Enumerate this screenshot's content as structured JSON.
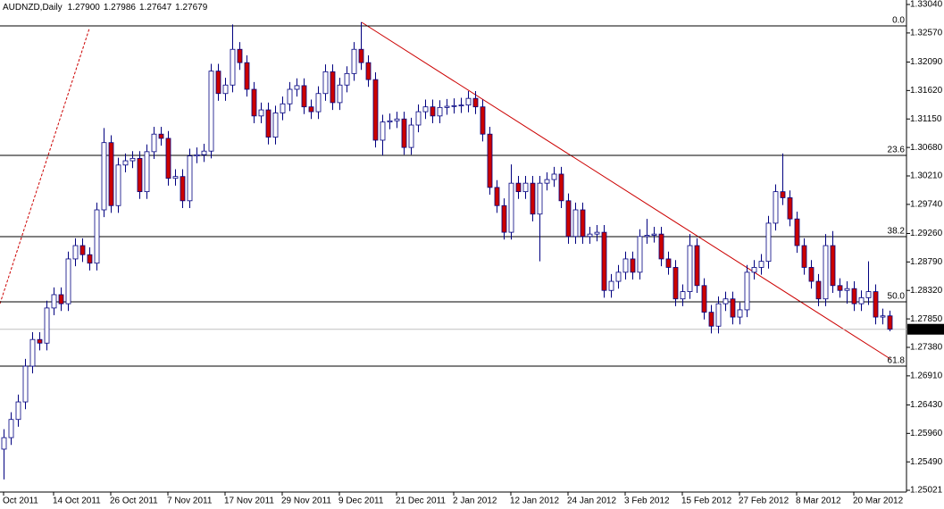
{
  "chart_data": {
    "type": "candlestick",
    "title": "AUDNZD,Daily",
    "last_bar_labels": {
      "open": "1.27900",
      "high": "1.27986",
      "low": "1.27647",
      "close": "1.27679"
    },
    "categories": [
      "Oct 2011",
      null,
      null,
      null,
      null,
      null,
      null,
      "14 Oct 2011",
      null,
      null,
      null,
      null,
      null,
      null,
      null,
      "26 Oct 2011",
      null,
      null,
      null,
      null,
      null,
      null,
      null,
      "7 Nov 2011",
      null,
      null,
      null,
      null,
      null,
      null,
      null,
      "17 Nov 2011",
      null,
      null,
      null,
      null,
      null,
      null,
      null,
      "29 Nov 2011",
      null,
      null,
      null,
      null,
      null,
      null,
      null,
      "9 Dec 2011",
      null,
      null,
      null,
      null,
      null,
      null,
      null,
      "21 Dec 2011",
      null,
      null,
      null,
      null,
      null,
      null,
      null,
      "2 Jan 2012",
      null,
      null,
      null,
      null,
      null,
      null,
      null,
      "12 Jan 2012",
      null,
      null,
      null,
      null,
      null,
      null,
      null,
      "24 Jan 2012",
      null,
      null,
      null,
      null,
      null,
      null,
      null,
      "3 Feb 2012",
      null,
      null,
      null,
      null,
      null,
      null,
      null,
      "15 Feb 2012",
      null,
      null,
      null,
      null,
      null,
      null,
      null,
      "27 Feb 2012",
      null,
      null,
      null,
      null,
      null,
      null,
      null,
      "8 Mar 2012",
      null,
      null,
      null,
      null,
      null,
      null,
      null,
      "20 Mar 2012",
      null,
      null,
      null,
      null,
      null
    ],
    "open": [
      1.257,
      1.2589,
      1.2619,
      1.2648,
      1.2707,
      1.2751,
      1.2745,
      1.2803,
      1.2825,
      1.281,
      1.2884,
      1.2906,
      1.2891,
      1.2877,
      1.2965,
      1.3076,
      1.2972,
      1.3039,
      1.3046,
      1.305,
      1.2995,
      1.3061,
      1.309,
      1.3083,
      1.3017,
      1.302,
      1.298,
      1.3054,
      1.3056,
      1.3062,
      1.3194,
      1.3157,
      1.3171,
      1.323,
      1.3208,
      1.3164,
      1.312,
      1.313,
      1.3085,
      1.3125,
      1.314,
      1.3164,
      1.317,
      1.3135,
      1.3127,
      1.3157,
      1.3193,
      1.3142,
      1.3171,
      1.319,
      1.323,
      1.3208,
      1.318,
      1.308,
      1.311,
      1.3112,
      1.3115,
      1.3068,
      1.3105,
      1.3127,
      1.3135,
      1.312,
      1.3134,
      1.3136,
      1.3137,
      1.3138,
      1.3149,
      1.3135,
      1.309,
      1.3002,
      1.2972,
      1.2928,
      1.3009,
      1.2995,
      1.3009,
      1.2958,
      1.3009,
      1.3015,
      1.3024,
      1.298,
      1.2921,
      1.2965,
      1.2921,
      1.2925,
      1.2928,
      1.2832,
      1.2847,
      1.2862,
      1.2884,
      1.2862,
      1.2921,
      1.2923,
      1.2925,
      1.2884,
      1.287,
      1.2818,
      1.283,
      1.2906,
      1.284,
      1.2796,
      1.2773,
      1.281,
      1.2818,
      1.2788,
      1.28,
      1.2862,
      1.287,
      1.288,
      1.2943,
      1.2995,
      1.2985,
      1.295,
      1.2906,
      1.287,
      1.2847,
      1.2818,
      1.2906,
      1.284,
      1.2832,
      1.2835,
      1.281,
      1.282,
      1.283,
      1.2788,
      1.279
    ],
    "high": [
      1.2603,
      1.2631,
      1.266,
      1.2719,
      1.2763,
      1.2763,
      1.2815,
      1.2837,
      1.2837,
      1.2896,
      1.2918,
      1.2918,
      1.2903,
      1.2977,
      1.31,
      1.3088,
      1.3051,
      1.3058,
      1.3062,
      1.3062,
      1.3073,
      1.3102,
      1.3102,
      1.3095,
      1.3032,
      1.3032,
      1.3066,
      1.3068,
      1.3074,
      1.3206,
      1.3206,
      1.3183,
      1.3271,
      1.3242,
      1.322,
      1.3176,
      1.3142,
      1.3142,
      1.3137,
      1.3152,
      1.3176,
      1.3182,
      1.3182,
      1.3147,
      1.3169,
      1.3205,
      1.3205,
      1.3183,
      1.3202,
      1.3242,
      1.3275,
      1.322,
      1.3192,
      1.3122,
      1.3124,
      1.3127,
      1.3127,
      1.3117,
      1.3139,
      1.3147,
      1.3147,
      1.3146,
      1.3148,
      1.3149,
      1.315,
      1.3161,
      1.3161,
      1.3147,
      1.3102,
      1.3014,
      1.2984,
      1.304,
      1.3021,
      1.3021,
      1.3021,
      1.3021,
      1.3027,
      1.3036,
      1.3036,
      1.2992,
      1.2977,
      1.2977,
      1.2937,
      1.294,
      1.294,
      1.2859,
      1.2874,
      1.2896,
      1.2896,
      1.2933,
      1.295,
      1.2937,
      1.2937,
      1.2896,
      1.2882,
      1.2842,
      1.2925,
      1.2918,
      1.2852,
      1.2808,
      1.2822,
      1.283,
      1.283,
      1.2812,
      1.2874,
      1.2882,
      1.2892,
      1.2955,
      1.3007,
      1.3058,
      1.2997,
      1.2962,
      1.2918,
      1.2882,
      1.2859,
      1.2925,
      1.293,
      1.2852,
      1.2847,
      1.2847,
      1.2832,
      1.288,
      1.2842,
      1.2802,
      1.27986
    ],
    "low": [
      1.252,
      1.2577,
      1.2607,
      1.2636,
      1.2695,
      1.2733,
      1.2733,
      1.2791,
      1.2798,
      1.2798,
      1.2872,
      1.2879,
      1.2865,
      1.2865,
      1.2953,
      1.296,
      1.296,
      1.3027,
      1.3034,
      1.2983,
      1.2983,
      1.3049,
      1.3071,
      1.3005,
      1.3005,
      1.2968,
      1.2968,
      1.3042,
      1.3044,
      1.305,
      1.3145,
      1.3145,
      1.3159,
      1.3196,
      1.3152,
      1.3108,
      1.3108,
      1.3073,
      1.3073,
      1.3113,
      1.3128,
      1.3152,
      1.3123,
      1.3115,
      1.3115,
      1.3145,
      1.313,
      1.313,
      1.3159,
      1.3178,
      1.3196,
      1.3168,
      1.3068,
      1.3055,
      1.3098,
      1.31,
      1.3056,
      1.3056,
      1.3093,
      1.3115,
      1.3108,
      1.3108,
      1.3122,
      1.3124,
      1.3125,
      1.3126,
      1.3123,
      1.3078,
      1.299,
      1.296,
      1.2916,
      1.2916,
      1.2983,
      1.2983,
      1.2946,
      1.288,
      1.2997,
      1.3003,
      1.2968,
      1.2909,
      1.2909,
      1.2909,
      1.2909,
      1.2913,
      1.282,
      1.282,
      1.2835,
      1.285,
      1.285,
      1.285,
      1.2909,
      1.2911,
      1.2872,
      1.2858,
      1.2806,
      1.2806,
      1.2818,
      1.2828,
      1.2784,
      1.2761,
      1.2761,
      1.2798,
      1.2776,
      1.2776,
      1.2788,
      1.285,
      1.2858,
      1.2868,
      1.2931,
      1.2973,
      1.2938,
      1.2894,
      1.2858,
      1.2835,
      1.2806,
      1.2806,
      1.2828,
      1.282,
      1.281,
      1.2798,
      1.2798,
      1.2808,
      1.2776,
      1.2776,
      1.27647
    ],
    "close": [
      1.2589,
      1.2619,
      1.2648,
      1.2707,
      1.2751,
      1.2745,
      1.2803,
      1.2825,
      1.281,
      1.2884,
      1.2906,
      1.2891,
      1.2877,
      1.2965,
      1.3076,
      1.2972,
      1.3039,
      1.3046,
      1.305,
      1.2995,
      1.3061,
      1.309,
      1.3083,
      1.3017,
      1.302,
      1.298,
      1.3054,
      1.3056,
      1.3062,
      1.3194,
      1.3157,
      1.3171,
      1.323,
      1.3208,
      1.3164,
      1.312,
      1.313,
      1.3085,
      1.3125,
      1.314,
      1.3164,
      1.317,
      1.3135,
      1.3127,
      1.3157,
      1.3193,
      1.3142,
      1.3171,
      1.319,
      1.323,
      1.3208,
      1.318,
      1.308,
      1.311,
      1.3112,
      1.3115,
      1.3068,
      1.3105,
      1.3127,
      1.3135,
      1.312,
      1.3134,
      1.3136,
      1.3137,
      1.3138,
      1.3149,
      1.3135,
      1.309,
      1.3002,
      1.2972,
      1.2928,
      1.3009,
      1.2995,
      1.3009,
      1.2958,
      1.3009,
      1.3015,
      1.3024,
      1.298,
      1.2921,
      1.2965,
      1.2921,
      1.2925,
      1.2928,
      1.2832,
      1.2847,
      1.2862,
      1.2884,
      1.2862,
      1.2921,
      1.2923,
      1.2925,
      1.2884,
      1.287,
      1.2818,
      1.283,
      1.2906,
      1.284,
      1.2796,
      1.2773,
      1.281,
      1.2818,
      1.2788,
      1.28,
      1.2862,
      1.287,
      1.288,
      1.2943,
      1.2995,
      1.2985,
      1.295,
      1.2906,
      1.287,
      1.2847,
      1.2818,
      1.2906,
      1.284,
      1.2832,
      1.2835,
      1.281,
      1.282,
      1.283,
      1.2788,
      1.279,
      1.27679
    ],
    "up_color": "#ffffff",
    "down_color": "#cc0000",
    "line_color": "#000080",
    "ylim": [
      1.24992,
      1.33114
    ],
    "yticks": [
      {
        "value": 1.3304,
        "label": "1.33040"
      },
      {
        "value": 1.3257,
        "label": "1.32570"
      },
      {
        "value": 1.3209,
        "label": "1.32090"
      },
      {
        "value": 1.3162,
        "label": "1.31620"
      },
      {
        "value": 1.3115,
        "label": "1.31150"
      },
      {
        "value": 1.3068,
        "label": "1.30680"
      },
      {
        "value": 1.3021,
        "label": "1.30210"
      },
      {
        "value": 1.2974,
        "label": "1.29740"
      },
      {
        "value": 1.2926,
        "label": "1.29260"
      },
      {
        "value": 1.2879,
        "label": "1.28790"
      },
      {
        "value": 1.2832,
        "label": "1.28320"
      },
      {
        "value": 1.2785,
        "label": "1.27850"
      },
      {
        "value": 1.2738,
        "label": "1.27380"
      },
      {
        "value": 1.2691,
        "label": "1.26910"
      },
      {
        "value": 1.2643,
        "label": "1.26430"
      },
      {
        "value": 1.2596,
        "label": "1.25960"
      },
      {
        "value": 1.2549,
        "label": "1.25490"
      },
      {
        "value": 1.25021,
        "label": "1.25021"
      }
    ],
    "fib_levels": [
      {
        "label": "0.0",
        "value": 1.32686
      },
      {
        "label": "23.6",
        "value": 1.30549
      },
      {
        "label": "38.2",
        "value": 1.29207
      },
      {
        "label": "50.0",
        "value": 1.28131
      },
      {
        "label": "61.8",
        "value": 1.2707
      }
    ],
    "grid": false
  }
}
